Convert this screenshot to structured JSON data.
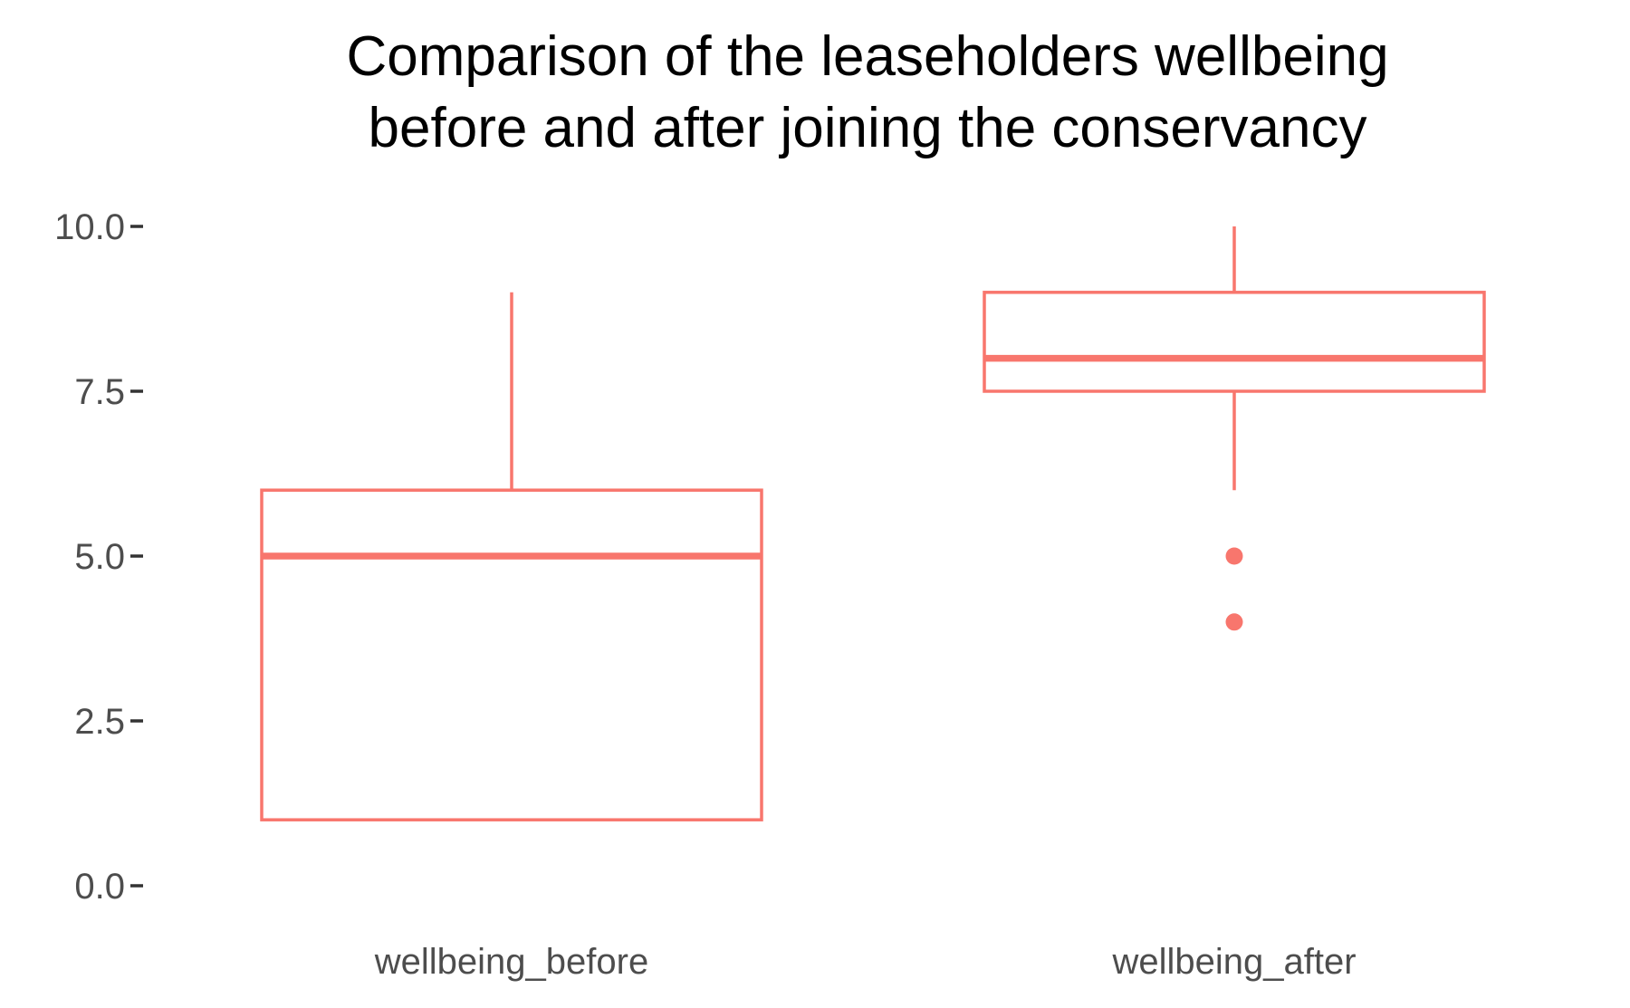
{
  "chart_data": {
    "type": "boxplot",
    "title_lines": [
      "Comparison of the leaseholders wellbeing",
      "before and after joining the conservancy"
    ],
    "xlabel": "",
    "ylabel": "",
    "ylim": [
      0,
      10
    ],
    "y_ticks": [
      0,
      2.5,
      5,
      7.5,
      10
    ],
    "y_tick_labels": [
      "0.0",
      "2.5",
      "5.0",
      "7.5",
      "10.0"
    ],
    "grid": false,
    "legend": "none",
    "color": "#f8766d",
    "categories": [
      "wellbeing_before",
      "wellbeing_after"
    ],
    "boxes": [
      {
        "category": "wellbeing_before",
        "whisker_low": 1,
        "q1": 1,
        "median": 5,
        "q3": 6,
        "whisker_high": 9,
        "outliers": []
      },
      {
        "category": "wellbeing_after",
        "whisker_low": 6,
        "q1": 7.5,
        "median": 8,
        "q3": 9,
        "whisker_high": 10,
        "outliers": [
          5,
          4
        ]
      }
    ]
  }
}
